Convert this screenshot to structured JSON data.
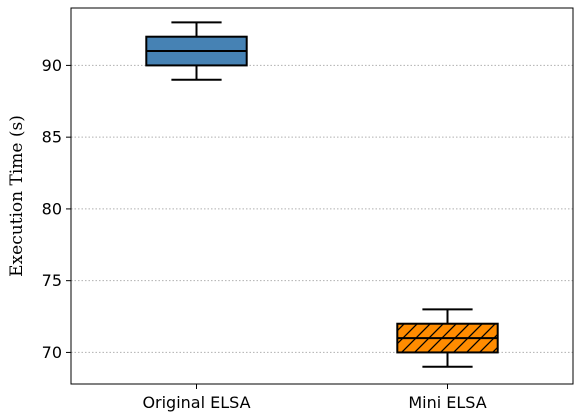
{
  "chart_data": {
    "type": "box",
    "title": "",
    "xlabel": "",
    "ylabel": "Execution Time (s)",
    "ylim": [
      67.8,
      94.0
    ],
    "yticks": [
      70,
      75,
      80,
      85,
      90
    ],
    "grid": "y-dotted",
    "categories": [
      "Original ELSA",
      "Mini ELSA"
    ],
    "boxes": [
      {
        "name": "Original ELSA",
        "whisker_low": 89,
        "q1": 90,
        "median": 91,
        "q3": 92,
        "whisker_high": 93,
        "color": "#4682b4",
        "hatch": "none"
      },
      {
        "name": "Mini ELSA",
        "whisker_low": 69,
        "q1": 70,
        "median": 71,
        "q3": 72,
        "whisker_high": 73,
        "color": "#ff8c00",
        "hatch": "diagonal"
      }
    ]
  }
}
